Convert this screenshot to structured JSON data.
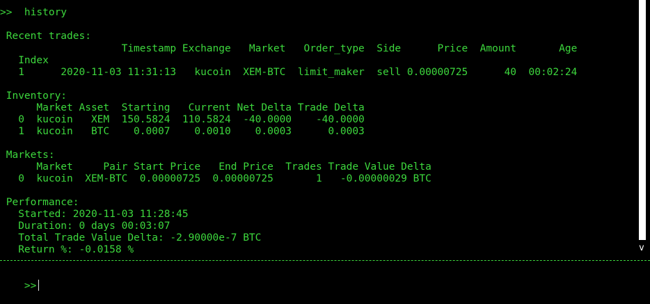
{
  "command_echo": ">>  history",
  "sections": {
    "recent_trades": {
      "title": " Recent trades:",
      "header1": "                    Timestamp Exchange   Market   Order_type  Side      Price  Amount       Age",
      "header2": "   Index",
      "rows": [
        "   1      2020-11-03 11:31:13   kucoin  XEM-BTC  limit_maker  sell 0.00000725      40  00:02:24"
      ]
    },
    "inventory": {
      "title": " Inventory:",
      "header": "      Market Asset  Starting   Current Net Delta Trade Delta",
      "rows": [
        "   0  kucoin   XEM  150.5824  110.5824  -40.0000    -40.0000",
        "   1  kucoin   BTC    0.0007    0.0010    0.0003      0.0003"
      ]
    },
    "markets": {
      "title": " Markets:",
      "header": "      Market     Pair Start Price   End Price  Trades Trade Value Delta",
      "rows": [
        "   0  kucoin  XEM-BTC  0.00000725  0.00000725       1   -0.00000029 BTC"
      ]
    },
    "performance": {
      "title": " Performance:",
      "lines": [
        "   Started: 2020-11-03 11:28:45",
        "   Duration: 0 days 00:03:07",
        "   Total Trade Value Delta: -2.90000e-7 BTC",
        "   Return %: -0.0158 %"
      ]
    }
  },
  "scrollbar": {
    "marker": "v"
  },
  "input": {
    "prompt": ">>",
    "value": ""
  },
  "colors": {
    "text": "#3dd83d",
    "background": "#000000",
    "scrollbar": "#ffffff"
  }
}
